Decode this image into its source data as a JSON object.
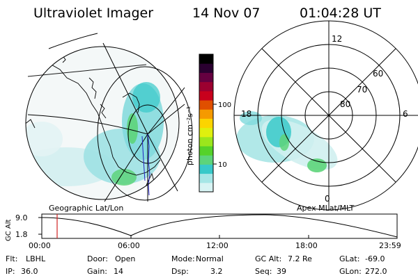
{
  "header": {
    "instrument": "Ultraviolet Imager",
    "date": "14 Nov 07",
    "time": "01:04:28 UT"
  },
  "geo_panel": {
    "label": "Geographic Lat/Lon"
  },
  "polar_panel": {
    "label": "Apex MLat/MLT",
    "mlt_labels": [
      "12",
      "18",
      "6",
      "0"
    ],
    "lat_labels": [
      "60",
      "70",
      "80"
    ]
  },
  "colorbar": {
    "unit_label": "photon cm⁻²s⁻¹",
    "ticks": [
      "100",
      "10"
    ],
    "colors": [
      "#d8f4f4",
      "#a6e6e6",
      "#38c9c9",
      "#5dd47a",
      "#55d229",
      "#9be61c",
      "#dff00e",
      "#fcd400",
      "#f59a00",
      "#e04f00",
      "#c8001c",
      "#9c0030",
      "#650040",
      "#2a0030",
      "#000000"
    ]
  },
  "altitude_plot": {
    "axis_label": "GC Alt",
    "y_ticks": [
      "9.0",
      "1.8"
    ],
    "x_ticks": [
      "00:00",
      "06:00",
      "12:00",
      "18:00",
      "23:59"
    ],
    "marker_color": "#d02020"
  },
  "status": {
    "row1": [
      {
        "label": "Flt:",
        "value": "LBHL"
      },
      {
        "label": "Door:",
        "value": "Open"
      },
      {
        "label": "Mode:",
        "value": "Normal"
      },
      {
        "label": "GC Alt:",
        "value": "7.2 Re"
      },
      {
        "label": "GLat:",
        "value": "-69.0"
      }
    ],
    "row2": [
      {
        "label": "IP:",
        "value": "36.0"
      },
      {
        "label": "Gain:",
        "value": "14"
      },
      {
        "label": "Dsp:",
        "value": "3.2"
      },
      {
        "label": "Seq:",
        "value": "39"
      },
      {
        "label": "GLon:",
        "value": "272.0"
      }
    ]
  }
}
